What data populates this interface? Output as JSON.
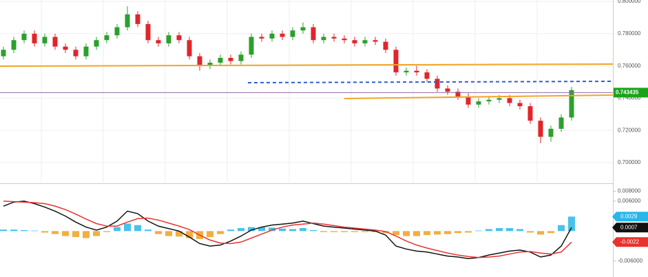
{
  "chart_data": [
    {
      "type": "candlestick",
      "open": [
        0.766,
        0.77,
        0.776,
        0.78,
        0.774,
        0.778,
        0.772,
        0.77,
        0.766,
        0.772,
        0.776,
        0.779,
        0.784,
        0.792,
        0.786,
        0.776,
        0.774,
        0.779,
        0.776,
        0.766,
        0.76,
        0.762,
        0.765,
        0.763,
        0.767,
        0.778,
        0.777,
        0.78,
        0.778,
        0.782,
        0.784,
        0.776,
        0.778,
        0.777,
        0.776,
        0.774,
        0.776,
        0.775,
        0.77,
        0.756,
        0.757,
        0.756,
        0.752,
        0.746,
        0.744,
        0.741,
        0.736,
        0.738,
        0.739,
        0.74,
        0.737,
        0.735,
        0.726,
        0.716,
        0.721,
        0.728
      ],
      "high": [
        0.772,
        0.778,
        0.782,
        0.782,
        0.78,
        0.78,
        0.774,
        0.772,
        0.774,
        0.778,
        0.781,
        0.786,
        0.797,
        0.794,
        0.788,
        0.778,
        0.781,
        0.781,
        0.778,
        0.768,
        0.764,
        0.767,
        0.767,
        0.769,
        0.78,
        0.78,
        0.782,
        0.782,
        0.784,
        0.787,
        0.786,
        0.78,
        0.78,
        0.779,
        0.778,
        0.778,
        0.778,
        0.777,
        0.772,
        0.759,
        0.76,
        0.758,
        0.754,
        0.748,
        0.746,
        0.743,
        0.74,
        0.741,
        0.742,
        0.742,
        0.739,
        0.737,
        0.728,
        0.723,
        0.73,
        0.747
      ],
      "low": [
        0.764,
        0.768,
        0.774,
        0.772,
        0.772,
        0.77,
        0.768,
        0.764,
        0.764,
        0.77,
        0.774,
        0.777,
        0.782,
        0.784,
        0.774,
        0.772,
        0.772,
        0.774,
        0.764,
        0.757,
        0.758,
        0.76,
        0.761,
        0.761,
        0.765,
        0.775,
        0.775,
        0.776,
        0.776,
        0.78,
        0.774,
        0.774,
        0.775,
        0.774,
        0.772,
        0.772,
        0.773,
        0.768,
        0.754,
        0.754,
        0.754,
        0.75,
        0.744,
        0.742,
        0.739,
        0.734,
        0.734,
        0.736,
        0.737,
        0.735,
        0.733,
        0.724,
        0.712,
        0.713,
        0.719,
        0.726
      ],
      "close": [
        0.77,
        0.776,
        0.78,
        0.774,
        0.778,
        0.772,
        0.77,
        0.766,
        0.772,
        0.776,
        0.779,
        0.784,
        0.792,
        0.786,
        0.776,
        0.774,
        0.779,
        0.776,
        0.766,
        0.76,
        0.762,
        0.765,
        0.763,
        0.767,
        0.778,
        0.777,
        0.78,
        0.778,
        0.782,
        0.784,
        0.776,
        0.778,
        0.777,
        0.776,
        0.774,
        0.776,
        0.775,
        0.77,
        0.756,
        0.757,
        0.756,
        0.752,
        0.746,
        0.744,
        0.741,
        0.736,
        0.738,
        0.739,
        0.74,
        0.737,
        0.735,
        0.726,
        0.716,
        0.721,
        0.728,
        0.745
      ],
      "up_color": "#2ca02c",
      "down_color": "#e0262b",
      "ylim": [
        0.6876,
        0.8009
      ],
      "yticks": [
        {
          "value": 0.7,
          "label": "0.700000"
        },
        {
          "value": 0.72,
          "label": "0.720000"
        },
        {
          "value": 0.74,
          "label": "0.740000"
        },
        {
          "value": 0.76,
          "label": "0.760000"
        },
        {
          "value": 0.78,
          "label": "0.780000"
        },
        {
          "value": 0.8,
          "label": "0.800000"
        }
      ],
      "last_price": 0.743435,
      "last_price_color": "#1aa31a",
      "grid": true
    },
    {
      "type": "macd",
      "series": [
        {
          "style": "bar",
          "color": "#29b6e8",
          "negative_color": "#f0a020",
          "values": [
            0.0003,
            0.0003,
            0.0002,
            0.0001,
            -0.0003,
            -0.0006,
            -0.001,
            -0.0012,
            -0.0014,
            -0.001,
            -0.0002,
            0.0008,
            0.0015,
            0.0012,
            0.0003,
            -0.0006,
            -0.001,
            -0.0011,
            -0.0014,
            -0.0016,
            -0.0012,
            -0.0006,
            0.0003,
            0.0006,
            0.0008,
            0.0008,
            0.0007,
            0.0005,
            0.0004,
            0.0006,
            0.0002,
            -0.0002,
            -0.0002,
            -0.0002,
            -0.0002,
            -0.0002,
            -0.0002,
            -0.0004,
            -0.0008,
            -0.001,
            -0.001,
            -0.0008,
            -0.0007,
            -0.0006,
            -0.0004,
            -0.0003,
            0.0001,
            0.0004,
            0.0006,
            0.0006,
            0.0004,
            -0.0003,
            -0.0007,
            -0.0004,
            0.0012,
            0.0029
          ]
        },
        {
          "style": "line",
          "color": "#111111",
          "values": [
            0.005,
            0.0058,
            0.006,
            0.0055,
            0.0048,
            0.004,
            0.003,
            0.0018,
            0.0008,
            0.0002,
            0.0008,
            0.002,
            0.004,
            0.0035,
            0.002,
            0.001,
            0.0005,
            0.0,
            -0.0012,
            -0.0025,
            -0.003,
            -0.0028,
            -0.002,
            -0.001,
            0.0002,
            0.0008,
            0.0012,
            0.0014,
            0.0016,
            0.002,
            0.0015,
            0.001,
            0.0008,
            0.0006,
            0.0004,
            0.0002,
            0.0,
            -0.0008,
            -0.003,
            -0.0036,
            -0.004,
            -0.0042,
            -0.0046,
            -0.005,
            -0.0052,
            -0.0055,
            -0.0053,
            -0.0048,
            -0.0044,
            -0.004,
            -0.0038,
            -0.0042,
            -0.0052,
            -0.0048,
            -0.003,
            0.0007
          ]
        },
        {
          "style": "line",
          "color": "#e8322e",
          "values": [
            0.006,
            0.0059,
            0.0058,
            0.0057,
            0.0055,
            0.005,
            0.0043,
            0.0034,
            0.0024,
            0.0015,
            0.001,
            0.001,
            0.0018,
            0.0025,
            0.0026,
            0.0022,
            0.0016,
            0.001,
            0.0003,
            -0.0008,
            -0.0018,
            -0.0024,
            -0.0025,
            -0.0022,
            -0.0014,
            -0.0006,
            0.0002,
            0.0008,
            0.0012,
            0.0014,
            0.0016,
            0.0014,
            0.0011,
            0.0008,
            0.0006,
            0.0004,
            0.0002,
            -0.0001,
            -0.001,
            -0.002,
            -0.0028,
            -0.0034,
            -0.0039,
            -0.0044,
            -0.0048,
            -0.0051,
            -0.0053,
            -0.0052,
            -0.005,
            -0.0046,
            -0.0042,
            -0.0041,
            -0.0044,
            -0.0046,
            -0.0042,
            -0.0022
          ]
        }
      ],
      "ylim": [
        -0.0092,
        0.0093
      ],
      "yticks": [
        {
          "value": -0.006,
          "label": "-0.006000"
        },
        {
          "value": 0.006,
          "label": "0.006000"
        },
        {
          "value": 0.008,
          "label": "0.008000"
        }
      ]
    }
  ]
}
